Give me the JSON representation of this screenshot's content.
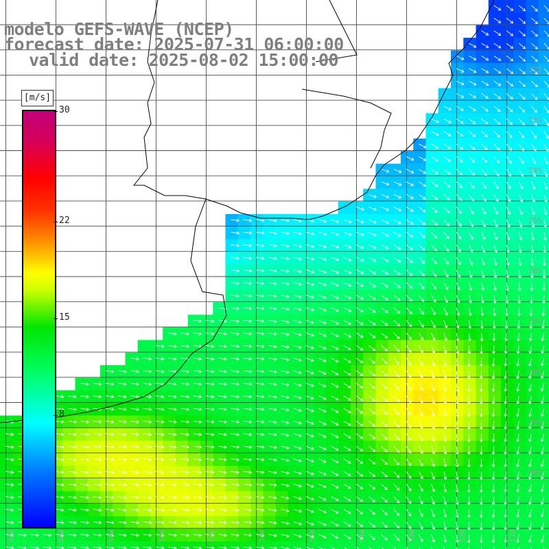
{
  "header": {
    "model": "modelo GEFS-WAVE (NCEP)",
    "forecast": "forecast date: 2025-07-31 06:00:00",
    "valid": "valid date: 2025-08-02 15:00:00"
  },
  "colorbar": {
    "units": "[m/s]",
    "min": 0,
    "max": 30,
    "ticks": [
      {
        "label": "30",
        "value": 30
      },
      {
        "label": "22",
        "value": 22
      },
      {
        "label": "15",
        "value": 15
      },
      {
        "label": "8",
        "value": 8
      }
    ],
    "colors": [
      "#0000ff",
      "#00ffff",
      "#00ff00",
      "#ffff00",
      "#ff0000",
      "#c0007a"
    ]
  },
  "axes": {
    "lon_labels": [
      "61W",
      "60W",
      "59W",
      "58W",
      "57W",
      "56W",
      "55W",
      "54W",
      "53W",
      "52W",
      "51W"
    ],
    "lat_labels": [
      "32S",
      "33S",
      "34S",
      "35S",
      "36S",
      "37S",
      "38S",
      "39S",
      "40S"
    ]
  }
}
